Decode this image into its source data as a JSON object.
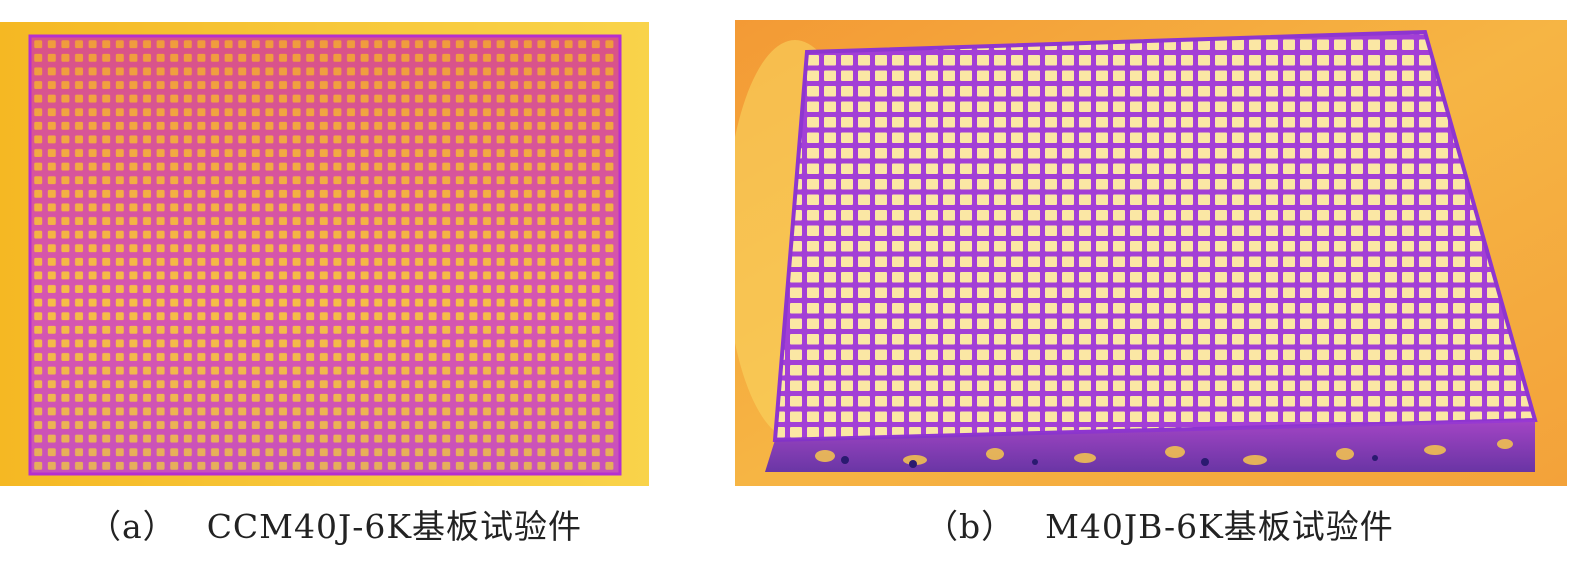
{
  "figures": [
    {
      "id": "a",
      "label": "（a）",
      "title": "CCM40J-6K基板试验件",
      "colors": {
        "background": "#f7c432",
        "plate": "#f28a2e",
        "grid": "#c33ad0",
        "cell": "#f6cf43"
      }
    },
    {
      "id": "b",
      "label": "（b）",
      "title": "M40JB-6K基板试验件",
      "colors": {
        "background": "#f4a53a",
        "plate": "#f8e38a",
        "grid": "#a640d8",
        "cell": "#fbe9a0"
      }
    }
  ]
}
